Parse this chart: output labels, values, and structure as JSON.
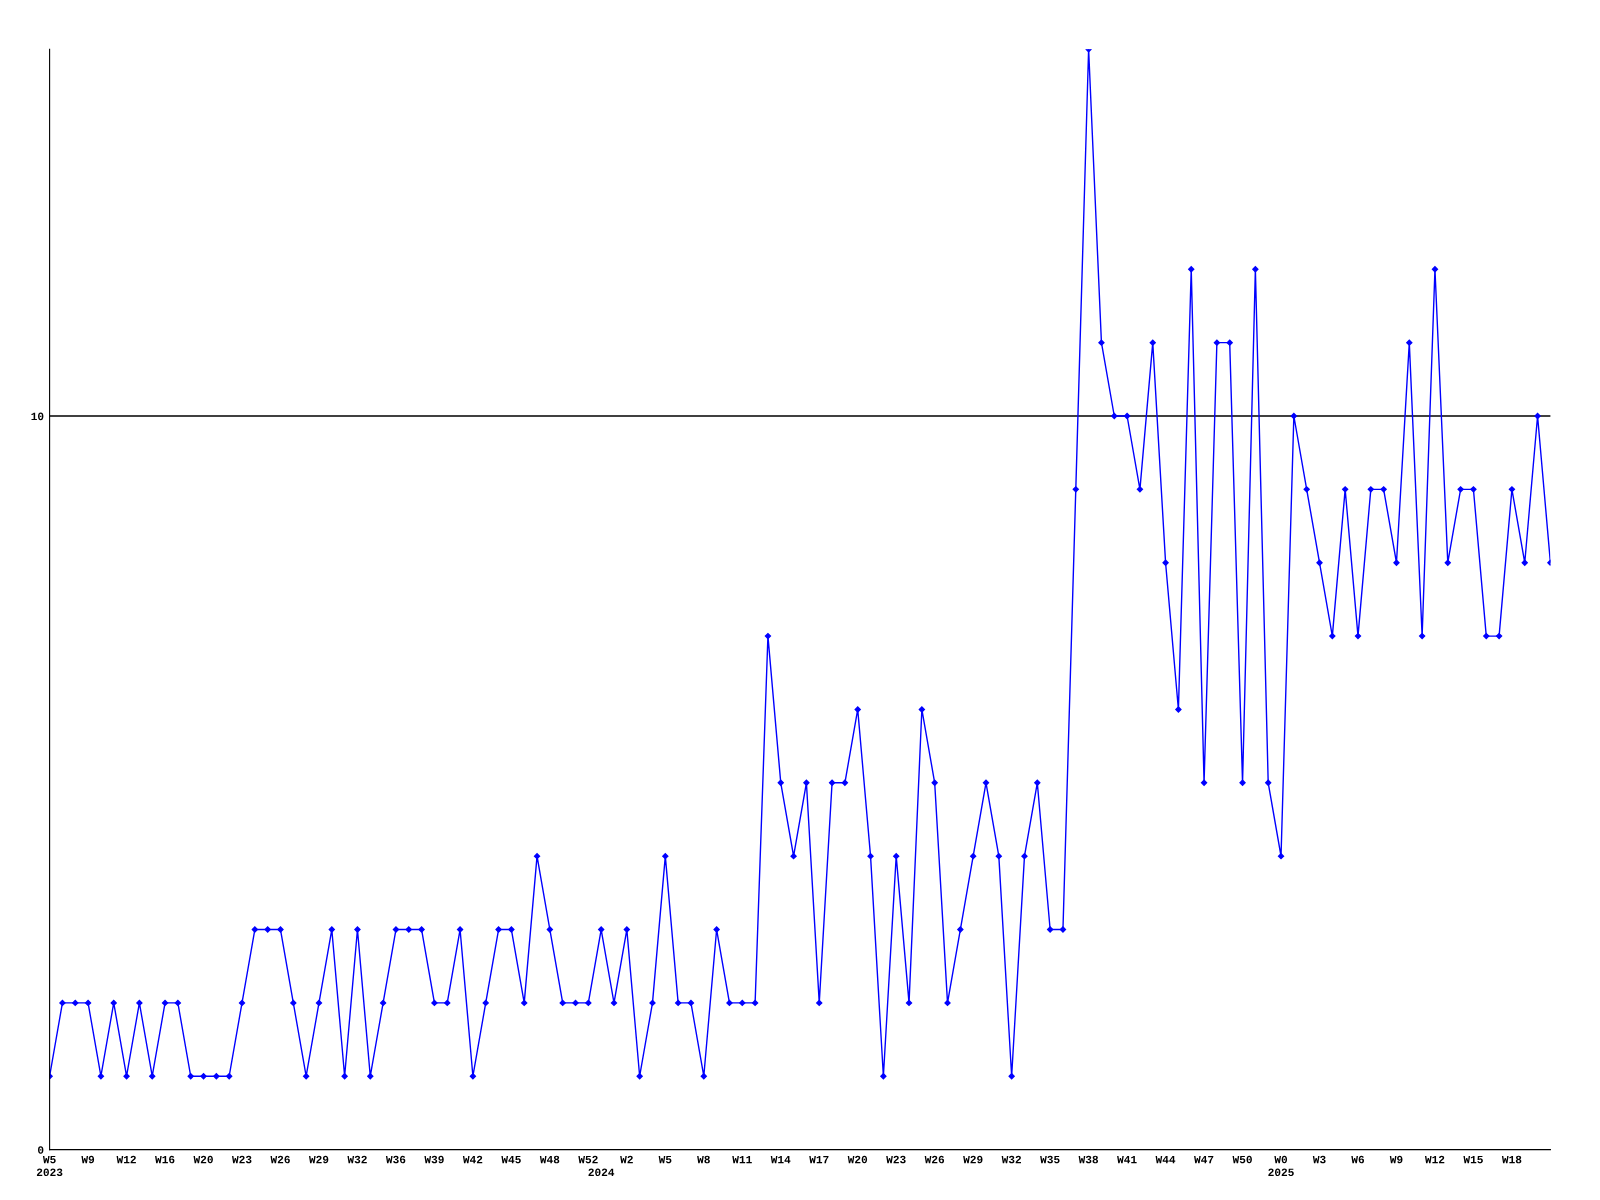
{
  "chart_data": {
    "type": "line",
    "categories": [
      "W5\n2023",
      null,
      null,
      "W9",
      null,
      null,
      "W12",
      null,
      null,
      "W16",
      null,
      null,
      "W20",
      null,
      null,
      "W23",
      null,
      null,
      "W26",
      null,
      null,
      "W29",
      null,
      null,
      "W32",
      null,
      null,
      "W36",
      null,
      null,
      "W39",
      null,
      null,
      "W42",
      null,
      null,
      "W45",
      null,
      null,
      "W48",
      null,
      null,
      "W52",
      "\n2024",
      null,
      "W2",
      null,
      null,
      "W5",
      null,
      null,
      "W8",
      null,
      null,
      "W11",
      null,
      null,
      "W14",
      null,
      null,
      "W17",
      null,
      null,
      "W20",
      null,
      null,
      "W23",
      null,
      null,
      "W26",
      null,
      null,
      "W29",
      null,
      null,
      "W32",
      null,
      null,
      "W35",
      null,
      null,
      "W38",
      null,
      null,
      "W41",
      null,
      null,
      "W44",
      null,
      null,
      "W47",
      null,
      null,
      "W50",
      null,
      null,
      "W0\n2025",
      null,
      null,
      "W3",
      null,
      null,
      "W6",
      null,
      null,
      "W9",
      null,
      null,
      "W12",
      null,
      null,
      "W15",
      null,
      null,
      "W18",
      null,
      null,
      null
    ],
    "series": [
      {
        "color": "#0000ff",
        "values": [
          1,
          2,
          2,
          2,
          1,
          2,
          1,
          2,
          1,
          2,
          2,
          1,
          1,
          1,
          1,
          2,
          3,
          3,
          3,
          2,
          1,
          2,
          3,
          1,
          3,
          1,
          2,
          3,
          3,
          3,
          2,
          2,
          3,
          1,
          2,
          3,
          3,
          2,
          4,
          3,
          2,
          2,
          2,
          3,
          2,
          3,
          1,
          2,
          4,
          2,
          2,
          1,
          3,
          2,
          2,
          2,
          7,
          5,
          4,
          5,
          2,
          5,
          5,
          6,
          4,
          1,
          4,
          2,
          6,
          5,
          2,
          3,
          4,
          5,
          4,
          1,
          4,
          5,
          3,
          3,
          9,
          15,
          11,
          10,
          10,
          9,
          11,
          8,
          6,
          12,
          5,
          11,
          11,
          5,
          12,
          5,
          4,
          10,
          9,
          8,
          7,
          9,
          7,
          9,
          9,
          8,
          11,
          7,
          12,
          8,
          9,
          9,
          7,
          7,
          9,
          8,
          10,
          8
        ]
      }
    ],
    "ylim": [
      0,
      15
    ],
    "yticks": [
      0,
      10
    ],
    "grid": "y",
    "marker": "diamond",
    "line_style": "solid"
  }
}
